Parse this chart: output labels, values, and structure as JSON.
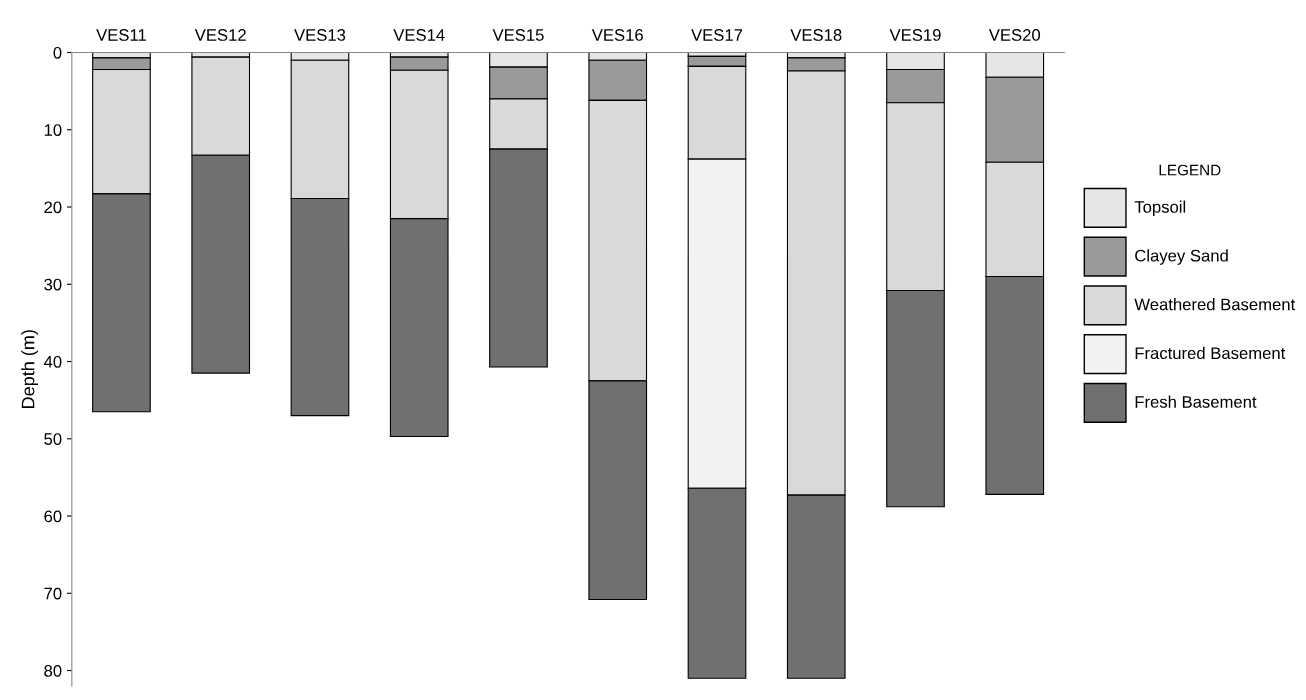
{
  "chart_data": {
    "type": "bar",
    "stacked": true,
    "ylabel": "Depth (m)",
    "legend_title": "LEGEND",
    "legend": "right",
    "categories": [
      "VES11",
      "VES12",
      "VES13",
      "VES14",
      "VES15",
      "VES16",
      "VES17",
      "VES18",
      "VES19",
      "VES20"
    ],
    "series": [
      {
        "name": "Topsoil",
        "color": "#e6e6e6",
        "values": [
          0.7,
          0.6,
          1.0,
          0.6,
          1.9,
          1.0,
          0.5,
          0.7,
          2.2,
          3.2
        ]
      },
      {
        "name": "Clayey Sand",
        "color": "#9a9a9a",
        "values": [
          1.5,
          null,
          null,
          1.7,
          4.1,
          5.2,
          1.3,
          1.7,
          4.3,
          11.0
        ]
      },
      {
        "name": "Weathered Basement",
        "color": "#d9d9d9",
        "values": [
          16.1,
          12.7,
          17.9,
          19.2,
          6.5,
          36.3,
          12.0,
          54.9,
          24.3,
          14.8
        ]
      },
      {
        "name": "Fractured Basement",
        "color": "#f2f2f2",
        "values": [
          null,
          null,
          null,
          null,
          null,
          null,
          42.6,
          null,
          null,
          null
        ]
      },
      {
        "name": "Fresh Basement",
        "color": "#707070",
        "values": [
          28.2,
          28.2,
          28.1,
          28.2,
          28.2,
          28.3,
          24.6,
          23.7,
          28.0,
          28.2
        ]
      }
    ],
    "ylim": [
      82,
      0
    ],
    "yticks": [
      0,
      10,
      20,
      30,
      40,
      50,
      60,
      70,
      80
    ],
    "grid": false
  }
}
